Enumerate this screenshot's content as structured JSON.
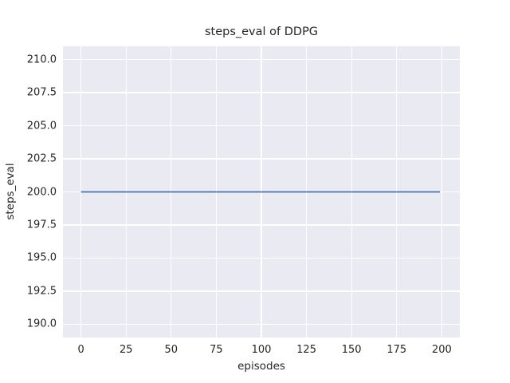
{
  "chart_data": {
    "type": "line",
    "title": "steps_eval of DDPG",
    "xlabel": "episodes",
    "ylabel": "steps_eval",
    "x_ticks": {
      "values": [
        0,
        25,
        50,
        75,
        100,
        125,
        150,
        175,
        200
      ],
      "labels": [
        "0",
        "25",
        "50",
        "75",
        "100",
        "125",
        "150",
        "175",
        "200"
      ]
    },
    "y_ticks": {
      "values": [
        190.0,
        192.5,
        195.0,
        197.5,
        200.0,
        202.5,
        205.0,
        207.5,
        210.0
      ],
      "labels": [
        "190.0",
        "192.5",
        "195.0",
        "197.5",
        "200.0",
        "202.5",
        "205.0",
        "207.5",
        "210.0"
      ]
    },
    "xlim": [
      -10,
      210
    ],
    "ylim": [
      189,
      211
    ],
    "grid": true,
    "legend": false,
    "series": [
      {
        "name": "DDPG steps_eval",
        "color": "#4c72b0",
        "x": [
          0,
          199
        ],
        "y": [
          200,
          200
        ],
        "constant_value": 200
      }
    ],
    "colors": {
      "figure_bg": "#ffffff",
      "plot_bg": "#eaeaf2",
      "grid": "#ffffff",
      "text": "#262626",
      "line": "#4c72b0"
    }
  }
}
